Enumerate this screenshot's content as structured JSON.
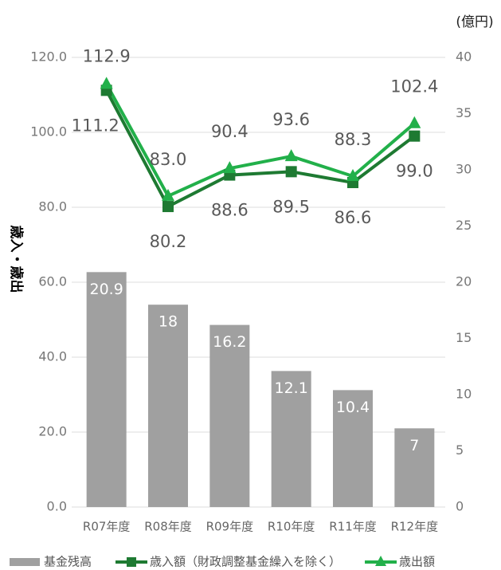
{
  "chart_data": {
    "type": "combo",
    "unit": "(億円)",
    "y_label": "歳入・歳出",
    "categories": [
      "R07年度",
      "R08年度",
      "R09年度",
      "R10年度",
      "R11年度",
      "R12年度"
    ],
    "series": [
      {
        "name": "基金残高",
        "type": "bar",
        "axis": "y2",
        "color": "#a0a0a0",
        "values": [
          20.9,
          18,
          16.2,
          12.1,
          10.4,
          7
        ]
      },
      {
        "name": "歳入額（財政調整基金繰入を除く）",
        "type": "line",
        "marker": "square",
        "color": "#1e7a32",
        "values": [
          111.2,
          80.2,
          88.6,
          89.5,
          86.6,
          99.0
        ],
        "value_labels": [
          "111.2",
          "80.2",
          "88.6",
          "89.5",
          "86.6",
          "99.0"
        ]
      },
      {
        "name": "歳出額",
        "type": "line",
        "marker": "triangle",
        "color": "#22b04a",
        "values": [
          112.9,
          83.0,
          90.4,
          93.6,
          88.3,
          102.4
        ],
        "value_labels": [
          "112.9",
          "83.0",
          "90.4",
          "93.6",
          "88.3",
          "102.4"
        ]
      }
    ],
    "ylim": [
      0,
      120
    ],
    "yticks": [
      {
        "value": 0,
        "label": "0.0"
      },
      {
        "value": 20,
        "label": "20.0"
      },
      {
        "value": 40,
        "label": "40.0"
      },
      {
        "value": 60,
        "label": "60.0"
      },
      {
        "value": 80,
        "label": "80.0"
      },
      {
        "value": 100,
        "label": "100.0"
      },
      {
        "value": 120,
        "label": "120.0"
      }
    ],
    "y2lim": [
      0,
      40
    ],
    "y2ticks": [
      0,
      5,
      10,
      15,
      20,
      25,
      30,
      35,
      40
    ],
    "grid": true,
    "legend": "bottom"
  }
}
